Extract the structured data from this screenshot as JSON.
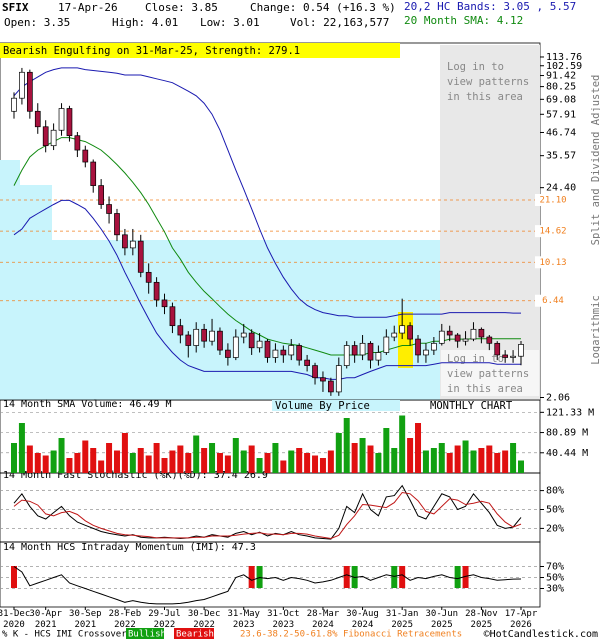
{
  "header": {
    "symbol": "SFIX",
    "date": "17-Apr-26",
    "close": "Close: 3.85",
    "change": "Change: 0.54 (+16.3 %)",
    "open": "Open: 3.35",
    "high": "High: 4.01",
    "low": "Low: 3.01",
    "volume": "Vol: 22,163,577",
    "bands": "20,2 HC Bands: 3.05 , 5.57",
    "sma": "20 Month SMA: 4.12"
  },
  "notes": {
    "pattern": "Bearish Engulfing on 31-Mar-25, Strength: 279.1",
    "login": [
      "Log in to",
      "view patterns",
      "in this area"
    ],
    "adjusted": "Split and Dividend Adjusted",
    "scale": "Logarithmic",
    "vbp": "Volume By Price",
    "period": "MONTHLY CHART",
    "legend_k": "% K - HCS IMI Crossover,",
    "bullish": "Bullish",
    "bearish": "Bearish",
    "fib": "23.6-38.2-50-61.8% Fibonacci Retracements",
    "copyright": "©HotCandlestick.com"
  },
  "chart_data": [
    {
      "type": "candlestick",
      "log": true,
      "categories": [
        "31-Dec 2020",
        null,
        null,
        null,
        "30-Apr 2021",
        null,
        null,
        null,
        null,
        "30-Sep 2021",
        null,
        null,
        null,
        null,
        "28-Feb 2022",
        null,
        null,
        null,
        null,
        "29-Jul 2022",
        null,
        null,
        null,
        null,
        "30-Dec 2022",
        null,
        null,
        null,
        null,
        "31-May 2023",
        null,
        null,
        null,
        null,
        "31-Oct 2023",
        null,
        null,
        null,
        null,
        "28-Mar 2024",
        null,
        null,
        null,
        null,
        "30-Aug 2024",
        null,
        null,
        null,
        null,
        "31-Jan 2025",
        null,
        null,
        null,
        null,
        "30-Jun 2025",
        null,
        null,
        null,
        null,
        "28-Nov 2025",
        null,
        null,
        null,
        null,
        "17-Apr 2026"
      ],
      "open": [
        60,
        70,
        95,
        60,
        50,
        40,
        48,
        62,
        45,
        38,
        33,
        25,
        20,
        18,
        14,
        12,
        13,
        9,
        8,
        6.5,
        6,
        4.8,
        4.3,
        3.8,
        4.6,
        4,
        4.5,
        3.6,
        3.3,
        4.2,
        4.4,
        3.7,
        4,
        3.3,
        3.6,
        3.4,
        3.8,
        3.2,
        3,
        2.6,
        2.5,
        2.2,
        3,
        3.8,
        3.4,
        3.9,
        3.2,
        3.5,
        4.2,
        4.4,
        4.8,
        4.1,
        3.4,
        3.6,
        3.9,
        4.5,
        4.3,
        4,
        4.1,
        4.6,
        4.2,
        3.9,
        3.4,
        3.3,
        3.35
      ],
      "high": [
        75,
        100,
        98,
        66,
        54,
        52,
        66,
        64,
        47,
        40,
        34,
        27,
        22,
        19,
        15,
        15,
        14,
        10,
        8.5,
        7,
        6.3,
        5.2,
        4.5,
        5,
        4.9,
        5.2,
        4.7,
        3.9,
        4.6,
        4.9,
        4.6,
        4.4,
        4.1,
        3.9,
        3.8,
        4.1,
        3.9,
        3.4,
        3.1,
        2.8,
        2.6,
        3.3,
        4,
        4,
        4.3,
        4,
        3.8,
        4.6,
        4.8,
        6.6,
        5,
        4.3,
        3.9,
        4.2,
        4.9,
        4.8,
        4.4,
        4.5,
        5,
        4.7,
        4.3,
        4,
        3.6,
        3.6,
        4.01
      ],
      "low": [
        55,
        65,
        55,
        46,
        37,
        38,
        45,
        42,
        35,
        31,
        23,
        19,
        16,
        13,
        11,
        11,
        8.5,
        7,
        6,
        5.5,
        4.4,
        3.9,
        3.3,
        3.5,
        3.7,
        3.8,
        3.4,
        3,
        3.2,
        3.9,
        3.4,
        3.5,
        3.1,
        3.1,
        3.1,
        3.2,
        3,
        2.8,
        2.4,
        2.2,
        2.1,
        2.1,
        2.9,
        3.1,
        3.2,
        2.9,
        3,
        3.4,
        4,
        4.1,
        3.8,
        3.1,
        3.1,
        3.4,
        3.8,
        4,
        3.7,
        3.8,
        4,
        3.9,
        3.6,
        3.2,
        3.1,
        3.1,
        3.01
      ],
      "close": [
        70,
        95,
        60,
        50,
        40,
        48,
        62,
        45,
        38,
        33,
        25,
        20,
        18,
        14,
        12,
        13,
        9,
        8,
        6.5,
        6,
        4.8,
        4.3,
        3.8,
        4.6,
        4,
        4.5,
        3.6,
        3.3,
        4.2,
        4.4,
        3.7,
        4,
        3.3,
        3.6,
        3.4,
        3.8,
        3.2,
        3,
        2.6,
        2.5,
        2.2,
        3,
        3.8,
        3.4,
        3.9,
        3.2,
        3.5,
        4.2,
        4.4,
        4.8,
        4.1,
        3.4,
        3.6,
        3.9,
        4.5,
        4.3,
        4,
        4.1,
        4.6,
        4.2,
        3.9,
        3.4,
        3.3,
        3.35,
        3.85
      ],
      "up_color": "#ffffff",
      "down_color": "#a8123e",
      "series": [
        {
          "color": "#1a1ab0",
          "values": [
            72,
            80,
            85,
            90,
            95,
            98,
            100,
            100,
            100,
            98,
            97,
            96,
            95,
            94,
            92,
            92,
            92,
            90,
            88,
            86,
            84,
            80,
            76,
            72,
            66,
            58,
            48,
            38,
            30,
            24,
            19,
            15,
            12,
            10,
            8.5,
            7.4,
            6.6,
            6.1,
            5.8,
            5.6,
            5.5,
            5.4,
            5.4,
            5.3,
            5.3,
            5.3,
            5.3,
            5.3,
            5.4,
            5.5,
            5.5,
            5.5,
            5.5,
            5.5,
            5.5,
            5.6,
            5.6,
            5.6,
            5.6,
            5.6,
            5.6,
            5.6,
            5.6,
            5.57,
            5.57
          ]
        },
        {
          "color": "#1a1ab0",
          "values": [
            14,
            15,
            17,
            18,
            19,
            20,
            21,
            21,
            20,
            19,
            17,
            15,
            13,
            11,
            9,
            7.5,
            6.2,
            5.2,
            4.4,
            3.9,
            3.5,
            3.2,
            3,
            2.9,
            2.8,
            2.8,
            2.8,
            2.8,
            2.8,
            2.8,
            2.8,
            2.8,
            2.8,
            2.8,
            2.8,
            2.8,
            2.75,
            2.7,
            2.6,
            2.6,
            2.55,
            2.55,
            2.6,
            2.6,
            2.7,
            2.8,
            2.9,
            3,
            3,
            3,
            3,
            3,
            3,
            3.05,
            3.1,
            3.1,
            3.1,
            3.1,
            3.1,
            3.1,
            3.1,
            3.05,
            3.05,
            3.05,
            3.05
          ]
        },
        {
          "color": "#108a10",
          "values": [
            25,
            30,
            35,
            38,
            40,
            42,
            44,
            44,
            43,
            42,
            40,
            38,
            35,
            32,
            29,
            26,
            23,
            20,
            17,
            14.5,
            12,
            10.5,
            9,
            8,
            7.2,
            6.6,
            6,
            5.5,
            5.1,
            4.8,
            4.5,
            4.3,
            4.1,
            4,
            3.9,
            3.85,
            3.8,
            3.7,
            3.6,
            3.5,
            3.4,
            3.4,
            3.4,
            3.4,
            3.4,
            3.5,
            3.5,
            3.6,
            3.7,
            3.8,
            3.8,
            3.9,
            3.9,
            4,
            4,
            4.1,
            4.1,
            4.1,
            4.12,
            4.12,
            4.12,
            4.12,
            4.12,
            4.12,
            4.12
          ]
        }
      ],
      "fib_levels": [
        {
          "value": 21.1,
          "label": "21.10"
        },
        {
          "value": 14.62,
          "label": "14.62"
        },
        {
          "value": 10.13,
          "label": "10.13"
        },
        {
          "value": 6.44,
          "label": "6.44"
        }
      ],
      "fib_color": "#f08020",
      "ylim": [
        2,
        131
      ],
      "yticks": [
        113.76,
        102.59,
        91.42,
        80.25,
        69.08,
        57.91,
        46.74,
        35.57,
        {
          "value": 24.4,
          "label": "24.40"
        },
        2.06
      ]
    },
    {
      "type": "bar",
      "title": "14 Month SMA Volume: 46.49 M",
      "values": [
        60,
        100,
        55,
        40,
        35,
        45,
        70,
        30,
        40,
        65,
        50,
        25,
        60,
        45,
        80,
        40,
        50,
        35,
        60,
        30,
        45,
        55,
        40,
        75,
        50,
        60,
        40,
        35,
        70,
        45,
        55,
        30,
        40,
        60,
        25,
        45,
        50,
        40,
        35,
        30,
        45,
        80,
        110,
        60,
        70,
        55,
        40,
        90,
        50,
        115,
        70,
        100,
        45,
        50,
        60,
        40,
        55,
        65,
        45,
        50,
        55,
        40,
        45,
        60,
        25
      ],
      "up_color": "#11a011",
      "down_color": "#e01010",
      "ylim": [
        0,
        130
      ],
      "yticks": [
        {
          "value": 121.33,
          "label": "121.33 M"
        },
        {
          "value": 80.89,
          "label": "80.89 M"
        },
        {
          "value": 40.44,
          "label": "40.44 M"
        }
      ]
    },
    {
      "type": "line",
      "title": "14 Month Fast Stochastic (%K)(%D): 37.4  26.9",
      "series": [
        {
          "color": "#000000",
          "values": [
            60,
            75,
            55,
            40,
            35,
            45,
            55,
            40,
            30,
            25,
            20,
            15,
            12,
            10,
            8,
            10,
            6,
            5,
            5,
            6,
            5,
            4,
            5,
            8,
            6,
            10,
            8,
            6,
            12,
            15,
            10,
            14,
            8,
            12,
            10,
            15,
            10,
            8,
            5,
            4,
            3,
            20,
            55,
            45,
            75,
            50,
            40,
            70,
            72,
            88,
            65,
            40,
            35,
            55,
            75,
            70,
            50,
            55,
            75,
            60,
            45,
            25,
            20,
            22,
            37.4
          ]
        },
        {
          "color": "#c01818",
          "values": [
            55,
            65,
            63,
            57,
            43,
            40,
            45,
            47,
            42,
            32,
            25,
            20,
            16,
            12,
            10,
            9,
            8,
            7,
            5,
            5,
            5,
            5,
            5,
            6,
            6,
            8,
            8,
            8,
            9,
            11,
            12,
            13,
            11,
            11,
            10,
            12,
            12,
            11,
            8,
            6,
            4,
            9,
            26,
            40,
            58,
            57,
            55,
            53,
            61,
            77,
            75,
            64,
            47,
            43,
            55,
            67,
            65,
            58,
            60,
            63,
            60,
            43,
            30,
            22,
            26.9
          ]
        }
      ],
      "ylim": [
        0,
        100
      ],
      "yticks": [
        {
          "value": 80,
          "label": "80%"
        },
        {
          "value": 50,
          "label": "50%"
        },
        {
          "value": 20,
          "label": "20%"
        }
      ]
    },
    {
      "type": "line",
      "title": "14 Month HCS Intraday Momentum (IMI): 47.3",
      "series": [
        {
          "color": "#000000",
          "values": [
            70,
            60,
            35,
            40,
            45,
            50,
            55,
            40,
            35,
            30,
            25,
            20,
            15,
            10,
            5,
            8,
            5,
            3,
            2,
            2,
            2,
            3,
            5,
            8,
            10,
            15,
            20,
            25,
            50,
            55,
            45,
            50,
            48,
            50,
            45,
            50,
            48,
            45,
            40,
            42,
            45,
            50,
            55,
            50,
            52,
            45,
            50,
            55,
            52,
            55,
            45,
            50,
            48,
            52,
            55,
            50,
            48,
            52,
            55,
            50,
            48,
            45,
            46,
            47,
            47.3
          ]
        }
      ],
      "bullish": [
        31,
        43,
        48,
        56
      ],
      "bearish": [
        0,
        30,
        42,
        49,
        57
      ],
      "ylim": [
        0,
        100
      ],
      "yticks": [
        {
          "value": 70,
          "label": "70%"
        },
        {
          "value": 50,
          "label": "50%"
        },
        {
          "value": 30,
          "label": "30%"
        }
      ]
    }
  ]
}
